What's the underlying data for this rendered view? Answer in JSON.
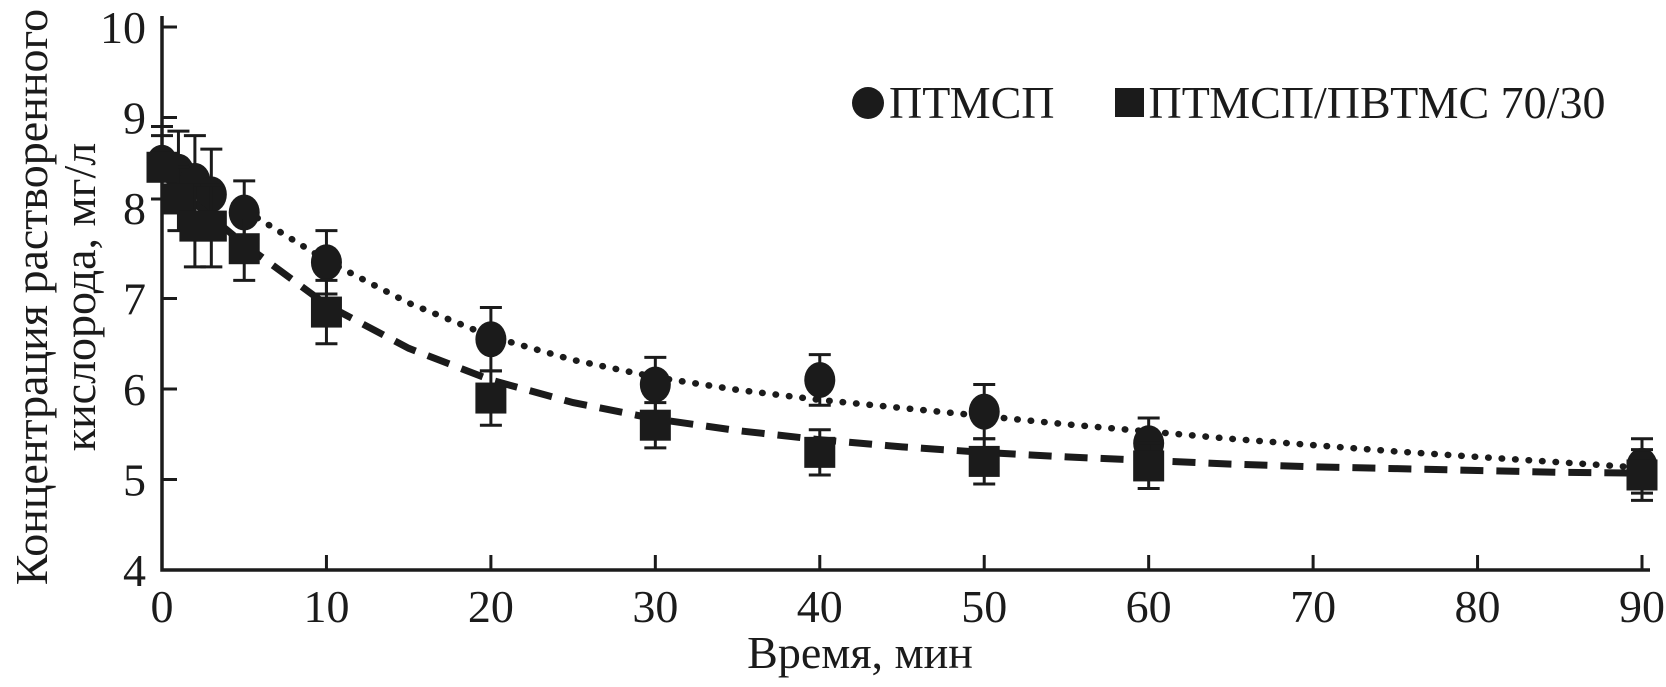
{
  "chart_data": {
    "type": "scatter",
    "title": "",
    "xlabel": "Время, мин",
    "ylabel": "Концентрация растворенного кислорода, мг/л",
    "ylabel_line1": "Концентрация растворенного",
    "ylabel_line2": "кислорода, мг/л",
    "xlim": [
      0,
      90
    ],
    "ylim": [
      4,
      10
    ],
    "x_ticks": [
      0,
      10,
      20,
      30,
      40,
      50,
      60,
      70,
      80,
      90
    ],
    "y_ticks": [
      4,
      5,
      6,
      7,
      8,
      9,
      10
    ],
    "grid": "off",
    "legend_position": "top-right-inside",
    "axis_color": "#1b1b1b",
    "background_color": "#ffffff",
    "series": [
      {
        "name": "ПТМСП",
        "marker": "circle",
        "line_style": "dotted",
        "color": "#1b1b1b",
        "points": [
          {
            "x": 0,
            "y": 8.5,
            "err": 0.4
          },
          {
            "x": 1,
            "y": 8.4,
            "err": 0.45
          },
          {
            "x": 2,
            "y": 8.3,
            "err": 0.5
          },
          {
            "x": 3,
            "y": 8.15,
            "err": 0.5
          },
          {
            "x": 5,
            "y": 7.95,
            "err": 0.35
          },
          {
            "x": 10,
            "y": 7.4,
            "err": 0.35
          },
          {
            "x": 20,
            "y": 6.55,
            "err": 0.35
          },
          {
            "x": 30,
            "y": 6.05,
            "err": 0.3
          },
          {
            "x": 40,
            "y": 6.1,
            "err": 0.28
          },
          {
            "x": 50,
            "y": 5.75,
            "err": 0.3
          },
          {
            "x": 60,
            "y": 5.4,
            "err": 0.28
          },
          {
            "x": 90,
            "y": 5.15,
            "err": 0.3
          }
        ],
        "fit": [
          [
            0,
            8.45
          ],
          [
            2,
            8.28
          ],
          [
            5,
            7.98
          ],
          [
            10,
            7.42
          ],
          [
            15,
            6.95
          ],
          [
            20,
            6.58
          ],
          [
            25,
            6.32
          ],
          [
            30,
            6.13
          ],
          [
            35,
            5.99
          ],
          [
            40,
            5.88
          ],
          [
            45,
            5.79
          ],
          [
            50,
            5.7
          ],
          [
            55,
            5.61
          ],
          [
            60,
            5.53
          ],
          [
            65,
            5.45
          ],
          [
            70,
            5.38
          ],
          [
            75,
            5.31
          ],
          [
            80,
            5.25
          ],
          [
            85,
            5.19
          ],
          [
            90,
            5.13
          ]
        ]
      },
      {
        "name": "ПТМСП/ПВТМС 70/30",
        "marker": "square",
        "line_style": "dashed",
        "color": "#1b1b1b",
        "points": [
          {
            "x": 0,
            "y": 8.45,
            "err": 0.35
          },
          {
            "x": 1,
            "y": 8.1,
            "err": 0.35
          },
          {
            "x": 2,
            "y": 7.8,
            "err": 0.45
          },
          {
            "x": 3,
            "y": 7.8,
            "err": 0.45
          },
          {
            "x": 5,
            "y": 7.55,
            "err": 0.35
          },
          {
            "x": 10,
            "y": 6.85,
            "err": 0.35
          },
          {
            "x": 20,
            "y": 5.9,
            "err": 0.3
          },
          {
            "x": 30,
            "y": 5.6,
            "err": 0.25
          },
          {
            "x": 40,
            "y": 5.3,
            "err": 0.25
          },
          {
            "x": 50,
            "y": 5.2,
            "err": 0.25
          },
          {
            "x": 60,
            "y": 5.15,
            "err": 0.25
          },
          {
            "x": 90,
            "y": 5.05,
            "err": 0.28
          }
        ],
        "fit": [
          [
            0,
            8.38
          ],
          [
            2,
            8.05
          ],
          [
            5,
            7.6
          ],
          [
            10,
            6.93
          ],
          [
            15,
            6.45
          ],
          [
            20,
            6.1
          ],
          [
            25,
            5.85
          ],
          [
            30,
            5.67
          ],
          [
            35,
            5.54
          ],
          [
            40,
            5.44
          ],
          [
            45,
            5.36
          ],
          [
            50,
            5.3
          ],
          [
            55,
            5.25
          ],
          [
            60,
            5.21
          ],
          [
            65,
            5.17
          ],
          [
            70,
            5.14
          ],
          [
            75,
            5.12
          ],
          [
            80,
            5.1
          ],
          [
            85,
            5.08
          ],
          [
            90,
            5.07
          ]
        ]
      }
    ]
  }
}
